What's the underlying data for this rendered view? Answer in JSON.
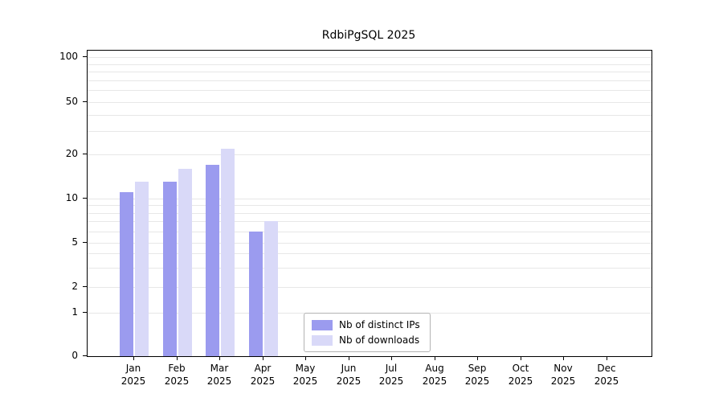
{
  "chart_data": {
    "type": "bar",
    "title": "RdbiPgSQL 2025",
    "categories": [
      "Jan",
      "Feb",
      "Mar",
      "Apr",
      "May",
      "Jun",
      "Jul",
      "Aug",
      "Sep",
      "Oct",
      "Nov",
      "Dec"
    ],
    "year": "2025",
    "series": [
      {
        "name": "Nb of distinct IPs",
        "color": "#9b9bef",
        "values": [
          11,
          13,
          17,
          6,
          0,
          0,
          0,
          0,
          0,
          0,
          0,
          0
        ]
      },
      {
        "name": "Nb of downloads",
        "color": "#d9d9f8",
        "values": [
          13,
          16,
          22,
          7,
          0,
          0,
          0,
          0,
          0,
          0,
          0,
          0
        ]
      }
    ],
    "y_ticks": [
      0,
      1,
      2,
      5,
      10,
      20,
      50,
      100
    ],
    "grid_values": [
      1,
      2,
      3,
      4,
      5,
      6,
      7,
      8,
      9,
      10,
      20,
      30,
      40,
      50,
      60,
      70,
      80,
      90,
      100
    ],
    "ylim": [
      0,
      100
    ],
    "scale": "log-above-1-linear-below",
    "grid": "horizontal-minor-log",
    "legend_position": "bottom-center-inside"
  }
}
